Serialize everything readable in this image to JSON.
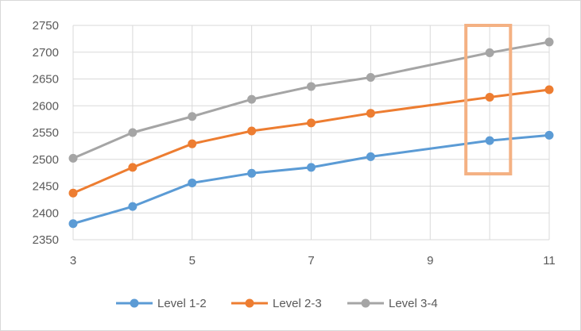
{
  "chart_data": {
    "type": "line",
    "title": "",
    "xlabel": "",
    "ylabel": "",
    "xlim": [
      3,
      11
    ],
    "ylim": [
      2350,
      2750
    ],
    "x_ticks": [
      3,
      5,
      7,
      9,
      11
    ],
    "y_ticks": [
      2350,
      2400,
      2450,
      2500,
      2550,
      2600,
      2650,
      2700,
      2750
    ],
    "grid": "vertical and horizontal major gridlines",
    "legend_position": "bottom",
    "x": [
      3,
      4,
      5,
      6,
      7,
      8,
      10,
      11
    ],
    "series": [
      {
        "name": "Level 1-2",
        "color": "#5b9bd5",
        "values": [
          2380,
          2412,
          2456,
          2474,
          2485,
          2505,
          2535,
          2545
        ]
      },
      {
        "name": "Level 2-3",
        "color": "#ed7d31",
        "values": [
          2437,
          2485,
          2529,
          2553,
          2568,
          2586,
          2616,
          2630
        ]
      },
      {
        "name": "Level 3-4",
        "color": "#a5a5a5",
        "values": [
          2502,
          2550,
          2580,
          2612,
          2636,
          2653,
          2699,
          2719
        ]
      }
    ],
    "annotations": [
      {
        "type": "highlight-box",
        "color": "#f4b183",
        "x_range": [
          9.6,
          10.35
        ],
        "y_range": [
          2473,
          2750
        ]
      }
    ]
  }
}
